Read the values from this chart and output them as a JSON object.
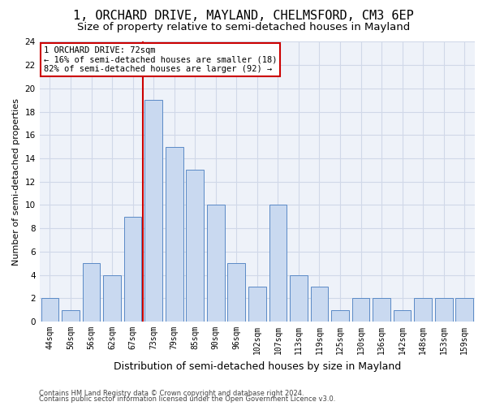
{
  "title1": "1, ORCHARD DRIVE, MAYLAND, CHELMSFORD, CM3 6EP",
  "title2": "Size of property relative to semi-detached houses in Mayland",
  "xlabel": "Distribution of semi-detached houses by size in Mayland",
  "ylabel": "Number of semi-detached properties",
  "categories": [
    "44sqm",
    "50sqm",
    "56sqm",
    "62sqm",
    "67sqm",
    "73sqm",
    "79sqm",
    "85sqm",
    "90sqm",
    "96sqm",
    "102sqm",
    "107sqm",
    "113sqm",
    "119sqm",
    "125sqm",
    "130sqm",
    "136sqm",
    "142sqm",
    "148sqm",
    "153sqm",
    "159sqm"
  ],
  "values": [
    2,
    1,
    5,
    4,
    9,
    19,
    15,
    13,
    10,
    5,
    3,
    10,
    4,
    3,
    1,
    2,
    2,
    1,
    2,
    2,
    2
  ],
  "bar_color": "#c9d9f0",
  "bar_edge_color": "#5a8ac6",
  "vline_x_index": 5,
  "annotation_title": "1 ORCHARD DRIVE: 72sqm",
  "annotation_line1": "← 16% of semi-detached houses are smaller (18)",
  "annotation_line2": "82% of semi-detached houses are larger (92) →",
  "ylim": [
    0,
    24
  ],
  "yticks": [
    0,
    2,
    4,
    6,
    8,
    10,
    12,
    14,
    16,
    18,
    20,
    22,
    24
  ],
  "footer1": "Contains HM Land Registry data © Crown copyright and database right 2024.",
  "footer2": "Contains public sector information licensed under the Open Government Licence v3.0.",
  "grid_color": "#d0d8e8",
  "vline_color": "#cc0000",
  "annotation_box_color": "#cc0000",
  "bg_color": "#eef2f9",
  "title1_fontsize": 11,
  "title2_fontsize": 9.5,
  "tick_fontsize": 7,
  "ylabel_fontsize": 8,
  "xlabel_fontsize": 9,
  "annotation_fontsize": 7.5,
  "footer_fontsize": 6
}
